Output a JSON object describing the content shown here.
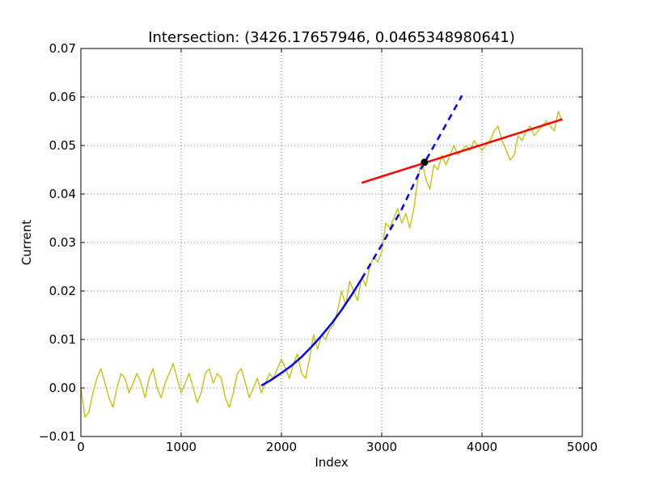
{
  "chart_data": {
    "type": "line",
    "title": "Intersection: (3426.17657946, 0.0465348980641)",
    "xlabel": "Index",
    "ylabel": "Current",
    "xlim": [
      0,
      5000
    ],
    "ylim": [
      -0.01,
      0.07
    ],
    "x_ticks": [
      0,
      1000,
      2000,
      3000,
      4000,
      5000
    ],
    "x_tick_labels": [
      "0",
      "1000",
      "2000",
      "3000",
      "4000",
      "5000"
    ],
    "y_ticks": [
      -0.01,
      0.0,
      0.01,
      0.02,
      0.03,
      0.04,
      0.05,
      0.06,
      0.07
    ],
    "y_tick_labels": [
      "−0.01",
      "0.00",
      "0.01",
      "0.02",
      "0.03",
      "0.04",
      "0.05",
      "0.06",
      "0.07"
    ],
    "grid": true,
    "colors": {
      "signal": "#bfbf00",
      "fit": "#0000ff",
      "linear": "#ff0000",
      "point": "#000000"
    },
    "series": [
      {
        "style": "solid",
        "color": "#bfbf00",
        "x": [
          0,
          40,
          80,
          120,
          160,
          200,
          240,
          280,
          320,
          360,
          400,
          440,
          480,
          520,
          560,
          600,
          640,
          680,
          720,
          760,
          800,
          840,
          880,
          920,
          960,
          1000,
          1040,
          1080,
          1120,
          1160,
          1200,
          1240,
          1280,
          1320,
          1360,
          1400,
          1440,
          1480,
          1520,
          1560,
          1600,
          1640,
          1680,
          1720,
          1760,
          1800,
          1840,
          1880,
          1920,
          1960,
          2000,
          2040,
          2080,
          2120,
          2160,
          2200,
          2240,
          2280,
          2320,
          2360,
          2400,
          2440,
          2480,
          2520,
          2560,
          2600,
          2640,
          2680,
          2720,
          2760,
          2800,
          2840,
          2880,
          2920,
          2960,
          3000,
          3040,
          3080,
          3120,
          3160,
          3200,
          3240,
          3280,
          3320,
          3360,
          3400,
          3440,
          3480,
          3520,
          3560,
          3600,
          3640,
          3680,
          3720,
          3760,
          3800,
          3840,
          3880,
          3920,
          3960,
          4000,
          4040,
          4080,
          4120,
          4160,
          4200,
          4240,
          4280,
          4320,
          4360,
          4400,
          4440,
          4480,
          4520,
          4560,
          4600,
          4640,
          4680,
          4720,
          4760,
          4800
        ],
        "y": [
          0.0,
          -0.006,
          -0.005,
          -0.001,
          0.002,
          0.004,
          0.001,
          -0.002,
          -0.004,
          0.0,
          0.003,
          0.002,
          -0.001,
          0.001,
          0.003,
          0.001,
          -0.002,
          0.002,
          0.004,
          0.0,
          -0.002,
          0.001,
          0.003,
          0.005,
          0.002,
          -0.001,
          0.001,
          0.003,
          0.0,
          -0.003,
          -0.001,
          0.003,
          0.004,
          0.001,
          0.003,
          0.002,
          -0.002,
          -0.004,
          -0.001,
          0.003,
          0.004,
          0.001,
          -0.002,
          0.0,
          0.002,
          -0.001,
          0.001,
          0.003,
          0.002,
          0.004,
          0.006,
          0.004,
          0.002,
          0.005,
          0.007,
          0.003,
          0.002,
          0.006,
          0.011,
          0.008,
          0.011,
          0.01,
          0.012,
          0.013,
          0.016,
          0.02,
          0.017,
          0.022,
          0.02,
          0.018,
          0.023,
          0.021,
          0.025,
          0.027,
          0.026,
          0.028,
          0.034,
          0.033,
          0.035,
          0.037,
          0.034,
          0.036,
          0.033,
          0.037,
          0.043,
          0.047,
          0.043,
          0.041,
          0.046,
          0.045,
          0.048,
          0.046,
          0.048,
          0.05,
          0.048,
          0.049,
          0.05,
          0.049,
          0.051,
          0.05,
          0.049,
          0.05,
          0.051,
          0.053,
          0.054,
          0.051,
          0.049,
          0.047,
          0.048,
          0.052,
          0.051,
          0.053,
          0.054,
          0.052,
          0.053,
          0.054,
          0.055,
          0.054,
          0.053,
          0.057,
          0.055
        ]
      },
      {
        "style": "solid",
        "color": "#0000ff",
        "x": [
          1800,
          1900,
          2000,
          2100,
          2200,
          2300,
          2400,
          2500,
          2600,
          2700,
          2800
        ],
        "y": [
          0.0005,
          0.0017,
          0.0031,
          0.0046,
          0.0064,
          0.0085,
          0.0108,
          0.0133,
          0.0161,
          0.0192,
          0.0225
        ]
      },
      {
        "style": "dashed",
        "color": "#0000ff",
        "x": [
          2800,
          3000,
          3200,
          3400,
          3600,
          3800
        ],
        "y": [
          0.0225,
          0.0295,
          0.0369,
          0.0455,
          0.0528,
          0.0603
        ]
      },
      {
        "style": "solid",
        "color": "#ff0000",
        "x": [
          2800,
          4800
        ],
        "y": [
          0.0423,
          0.0554
        ]
      }
    ],
    "points": [
      {
        "x": 3426.17657946,
        "y": 0.0465348980641,
        "color": "#000000"
      }
    ]
  }
}
